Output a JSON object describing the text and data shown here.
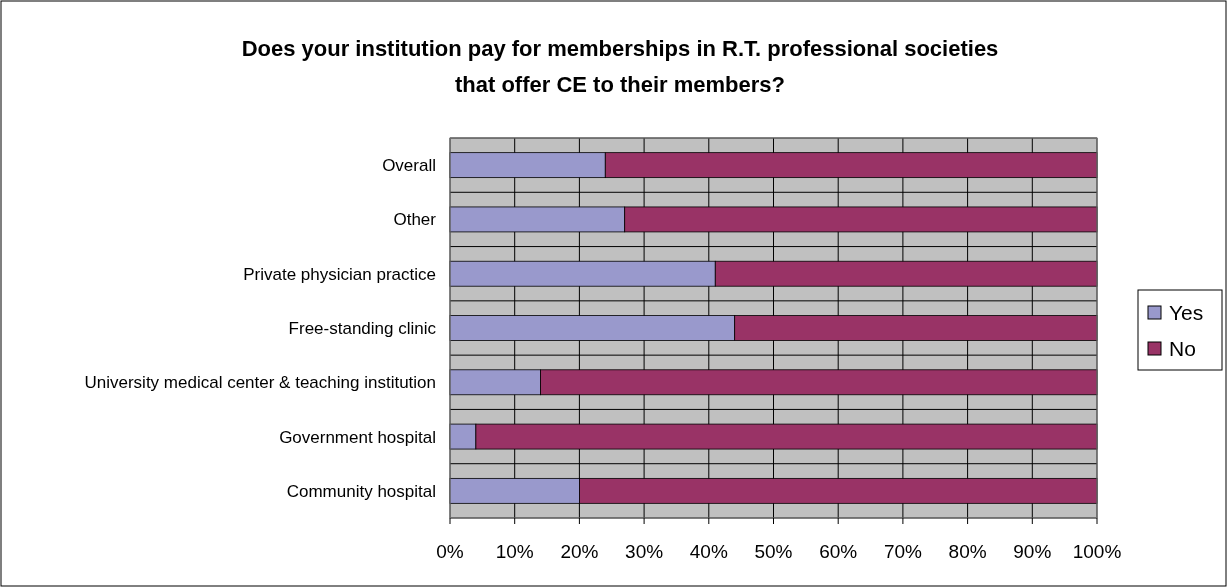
{
  "chart_data": {
    "type": "bar",
    "orientation": "horizontal",
    "stacked": true,
    "title": "Does your institution pay for memberships in R.T. professional societies\nthat offer CE to their members?",
    "categories": [
      "Overall",
      "Other",
      "Private physician practice",
      "Free-standing clinic",
      "University medical center & teaching institution",
      "Government hospital",
      "Community hospital"
    ],
    "series": [
      {
        "name": "Yes",
        "color": "#9999cc",
        "values": [
          24,
          27,
          41,
          44,
          14,
          4,
          20
        ]
      },
      {
        "name": "No",
        "color": "#993366",
        "values": [
          76,
          73,
          59,
          56,
          86,
          96,
          80
        ]
      }
    ],
    "xlim": [
      0,
      100
    ],
    "xticks": [
      {
        "value": 0,
        "label": "0%"
      },
      {
        "value": 10,
        "label": "10%"
      },
      {
        "value": 20,
        "label": "20%"
      },
      {
        "value": 30,
        "label": "30%"
      },
      {
        "value": 40,
        "label": "40%"
      },
      {
        "value": 50,
        "label": "50%"
      },
      {
        "value": 60,
        "label": "60%"
      },
      {
        "value": 70,
        "label": "70%"
      },
      {
        "value": 80,
        "label": "80%"
      },
      {
        "value": 90,
        "label": "90%"
      },
      {
        "value": 100,
        "label": "100%"
      }
    ],
    "grid": true,
    "legend": "right"
  }
}
